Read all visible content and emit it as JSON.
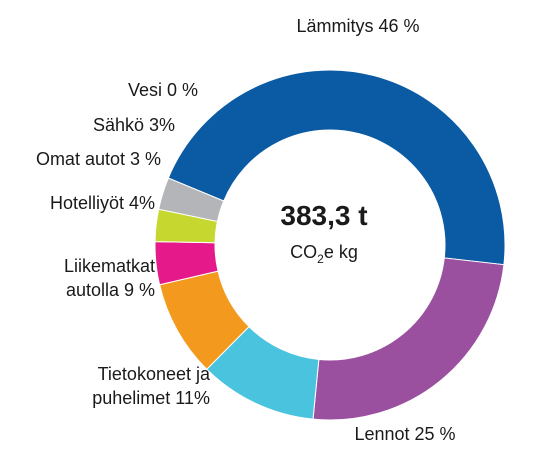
{
  "chart_data": {
    "type": "pie",
    "style": "donut",
    "center_total": "383,3 t",
    "center_unit": {
      "prefix": "CO",
      "sub": "2",
      "suffix": "e kg"
    },
    "slices": [
      {
        "label_lines": [
          "Lämmitys 46 %"
        ],
        "value": 46,
        "color": "#0a5aa4"
      },
      {
        "label_lines": [
          "Lennot 25 %"
        ],
        "value": 25,
        "color": "#9b4f9f"
      },
      {
        "label_lines": [
          "Tietokoneet ja",
          "puhelimet 11%"
        ],
        "value": 11,
        "color": "#4ac3df"
      },
      {
        "label_lines": [
          "Liikematkat",
          "autolla 9 %"
        ],
        "value": 9,
        "color": "#f39a1e"
      },
      {
        "label_lines": [
          "Hotelliyöt  4%"
        ],
        "value": 4,
        "color": "#e5198a"
      },
      {
        "label_lines": [
          "Omat autot 3 %"
        ],
        "value": 3,
        "color": "#c6d82f"
      },
      {
        "label_lines": [
          "Sähkö  3%"
        ],
        "value": 3,
        "color": "#b3b5b8"
      },
      {
        "label_lines": [
          "Vesi 0 %"
        ],
        "value": 0,
        "color": "#0a5aa4"
      }
    ]
  }
}
